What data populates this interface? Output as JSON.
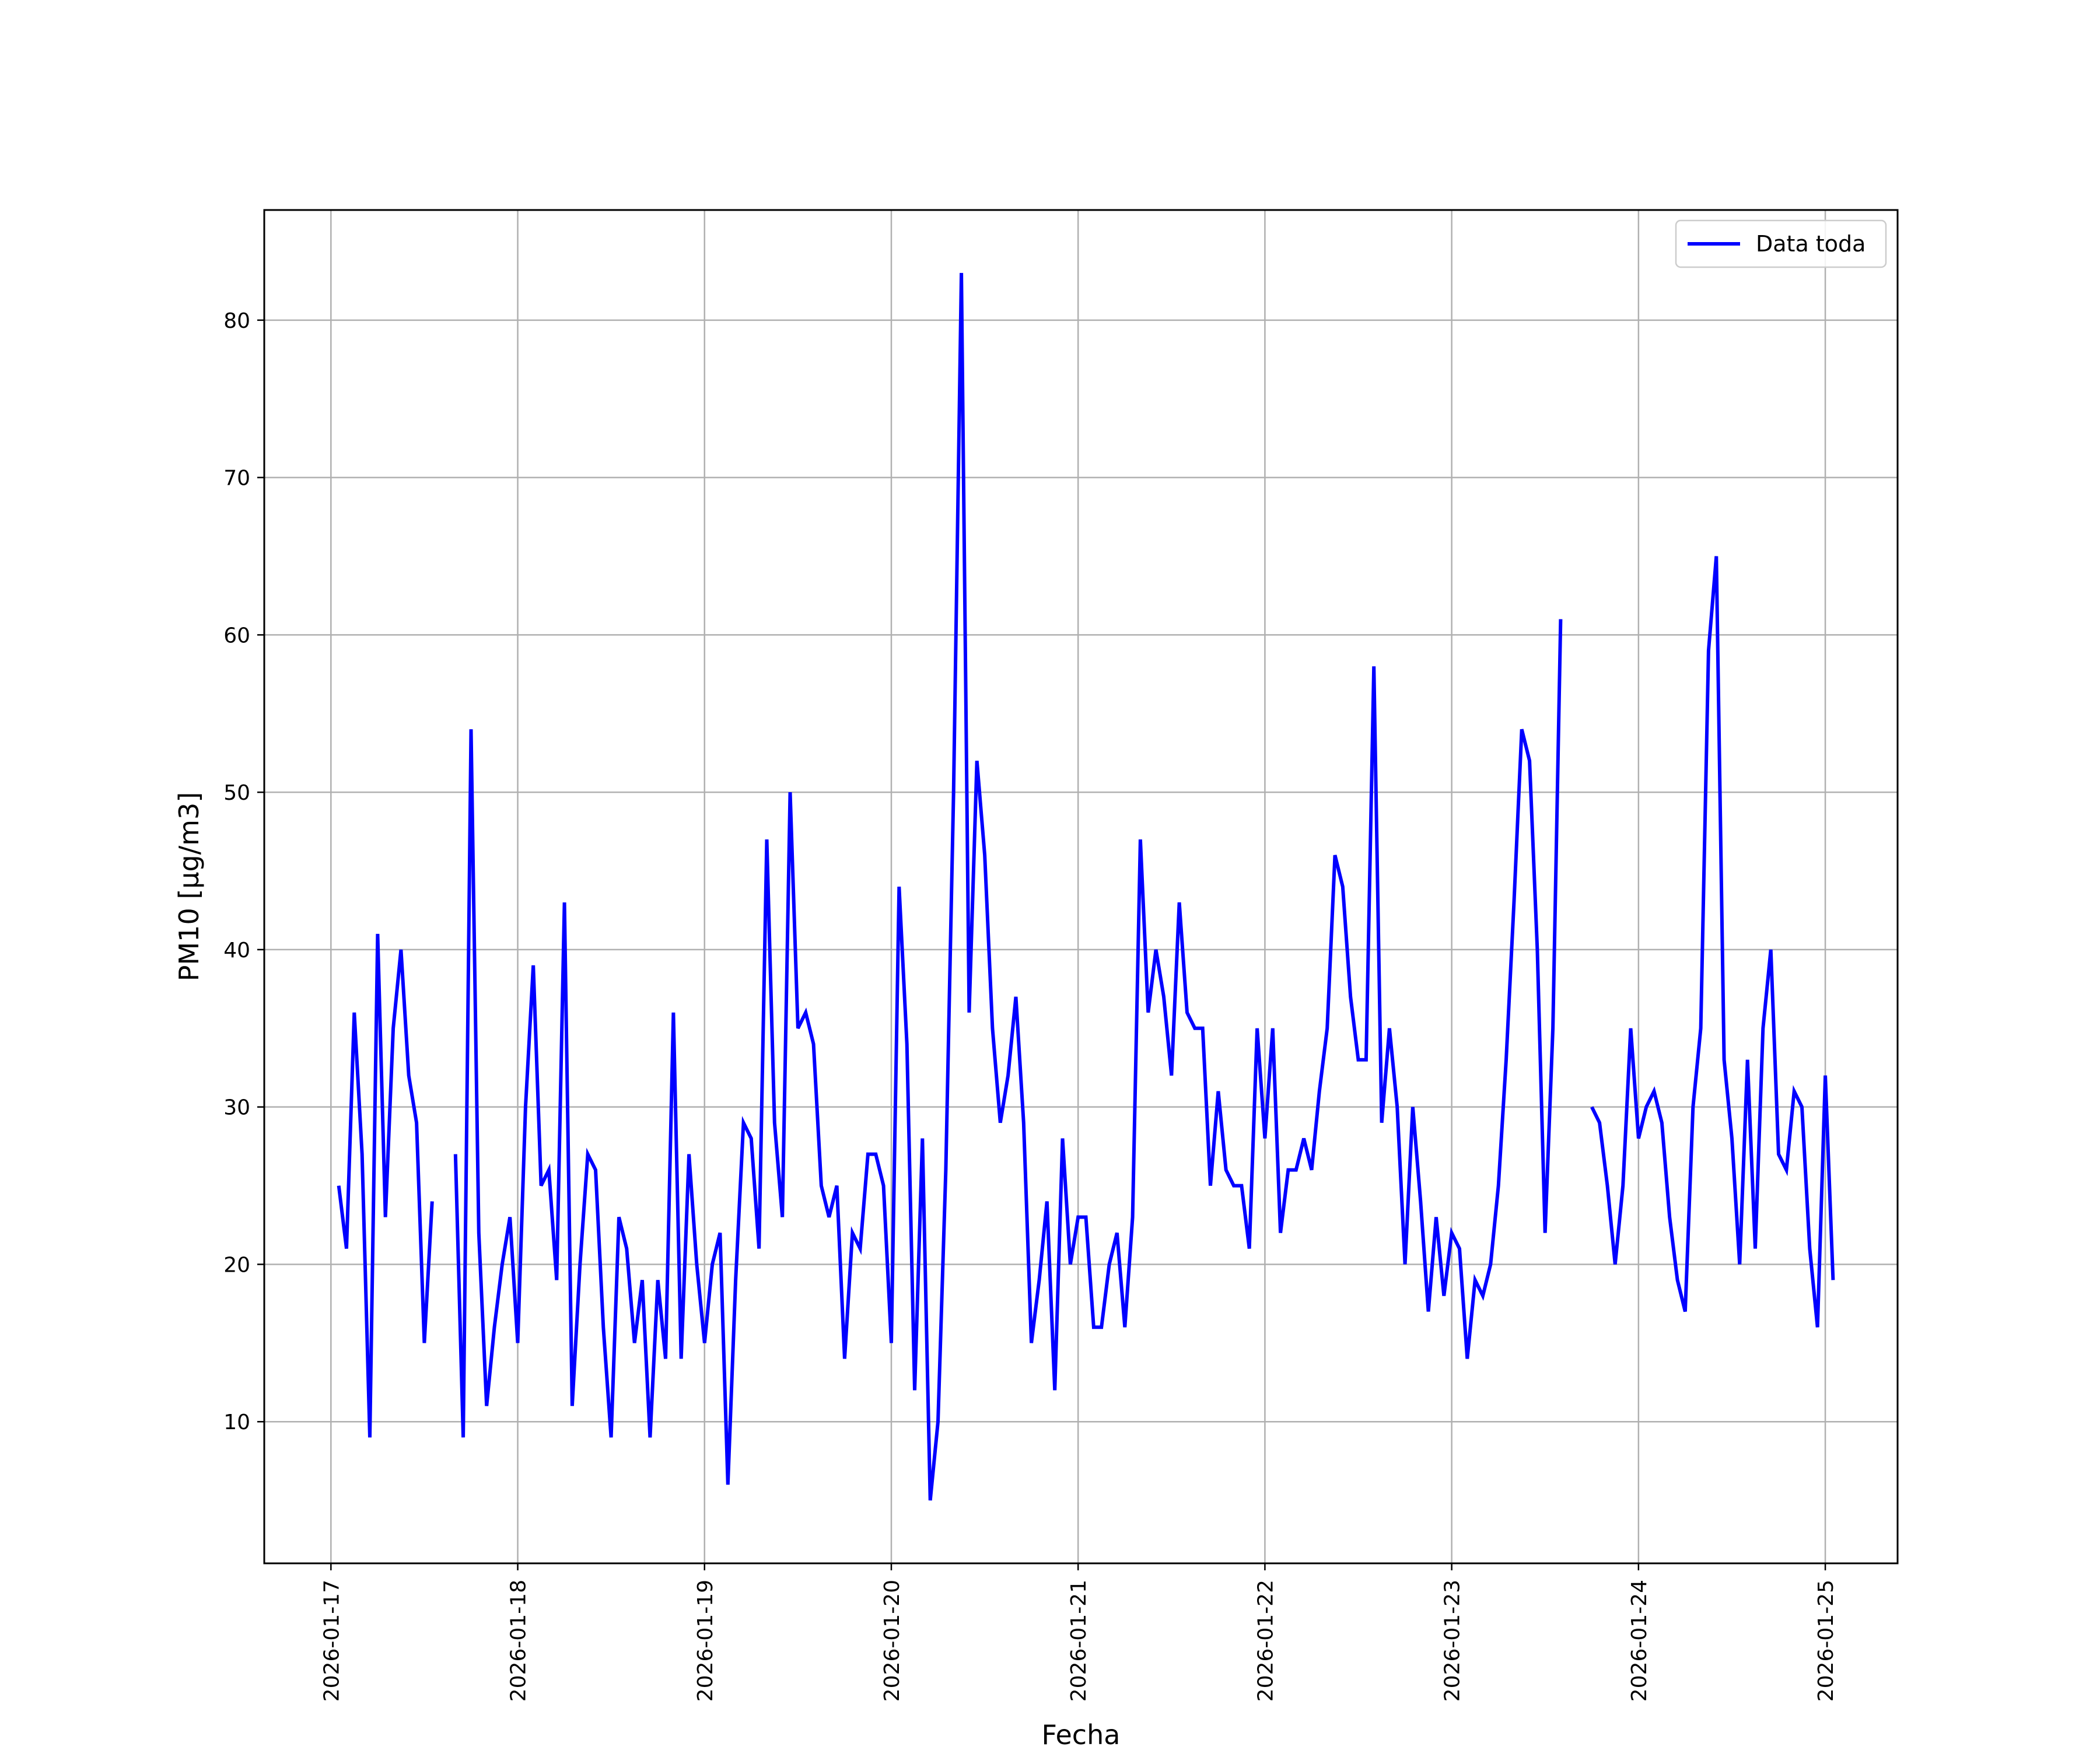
{
  "chart_data": {
    "type": "line",
    "title": "",
    "xlabel": "Fecha",
    "ylabel": "PM10 [µg/m3]",
    "ylim": [
      1,
      87
    ],
    "yticks": [
      10,
      20,
      30,
      40,
      50,
      60,
      70,
      80
    ],
    "xlim": [
      -0.357,
      8.387
    ],
    "xticks": [
      "2026-01-17",
      "2026-01-18",
      "2026-01-19",
      "2026-01-20",
      "2026-01-21",
      "2026-01-22",
      "2026-01-23",
      "2026-01-24",
      "2026-01-25"
    ],
    "grid": true,
    "legend_position": "top-right",
    "series": [
      {
        "name": "Data toda",
        "color": "#0000ff",
        "x_start": "2026-01-17T01:00",
        "x_step_hours": 1,
        "values": [
          25,
          21,
          36,
          27,
          9,
          41,
          23,
          35,
          40,
          32,
          29,
          15,
          24,
          null,
          null,
          27,
          9,
          54,
          22,
          11,
          16,
          20,
          23,
          15,
          30,
          39,
          25,
          26,
          19,
          43,
          11,
          20,
          27,
          26,
          16,
          9,
          23,
          21,
          15,
          19,
          9,
          19,
          14,
          36,
          14,
          27,
          20,
          15,
          20,
          22,
          6,
          19,
          29,
          28,
          21,
          47,
          29,
          23,
          50,
          35,
          36,
          34,
          25,
          23,
          25,
          14,
          22,
          21,
          27,
          27,
          25,
          15,
          44,
          34,
          12,
          28,
          5,
          10,
          26,
          50,
          83,
          36,
          52,
          46,
          35,
          29,
          32,
          37,
          29,
          15,
          19,
          24,
          12,
          28,
          20,
          23,
          23,
          16,
          16,
          20,
          22,
          16,
          23,
          47,
          36,
          40,
          37,
          32,
          43,
          36,
          35,
          35,
          25,
          31,
          26,
          25,
          25,
          21,
          35,
          28,
          35,
          22,
          26,
          26,
          28,
          26,
          31,
          35,
          46,
          44,
          37,
          33,
          33,
          58,
          29,
          35,
          30,
          20,
          30,
          24,
          17,
          23,
          18,
          22,
          21,
          14,
          19,
          18,
          20,
          25,
          33,
          43,
          54,
          52,
          40,
          22,
          35,
          61,
          null,
          null,
          null,
          30,
          29,
          25,
          20,
          25,
          35,
          28,
          30,
          31,
          29,
          23,
          19,
          17,
          30,
          35,
          59,
          65,
          33,
          28,
          20,
          33,
          21,
          35,
          40,
          27,
          26,
          31,
          30,
          21,
          16,
          32,
          19
        ]
      }
    ]
  }
}
